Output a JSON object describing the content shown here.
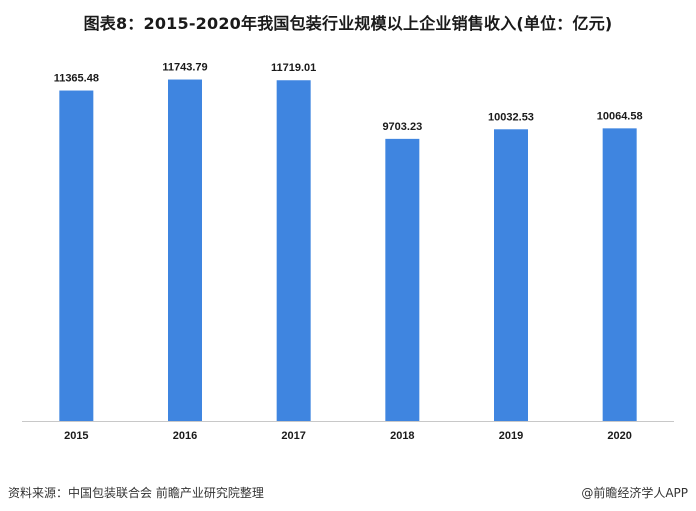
{
  "colors": {
    "bar": "#3f85e0",
    "axis": "#c8c8c8",
    "text": "#1a1a1a"
  },
  "footer": {
    "source": "资料来源：中国包装联合会 前瞻产业研究院整理",
    "brand": "@前瞻经济学人APP"
  },
  "chart_data": {
    "type": "bar",
    "title": "图表8：2015-2020年我国包装行业规模以上企业销售收入(单位：亿元)",
    "categories": [
      "2015",
      "2016",
      "2017",
      "2018",
      "2019",
      "2020"
    ],
    "values": [
      11365.48,
      11743.79,
      11719.01,
      9703.23,
      10032.53,
      10064.58
    ],
    "value_labels": [
      "11365.48",
      "11743.79",
      "11719.01",
      "9703.23",
      "10032.53",
      "10064.58"
    ],
    "ylim": [
      0,
      13000
    ],
    "grid": false,
    "legend": "none"
  }
}
